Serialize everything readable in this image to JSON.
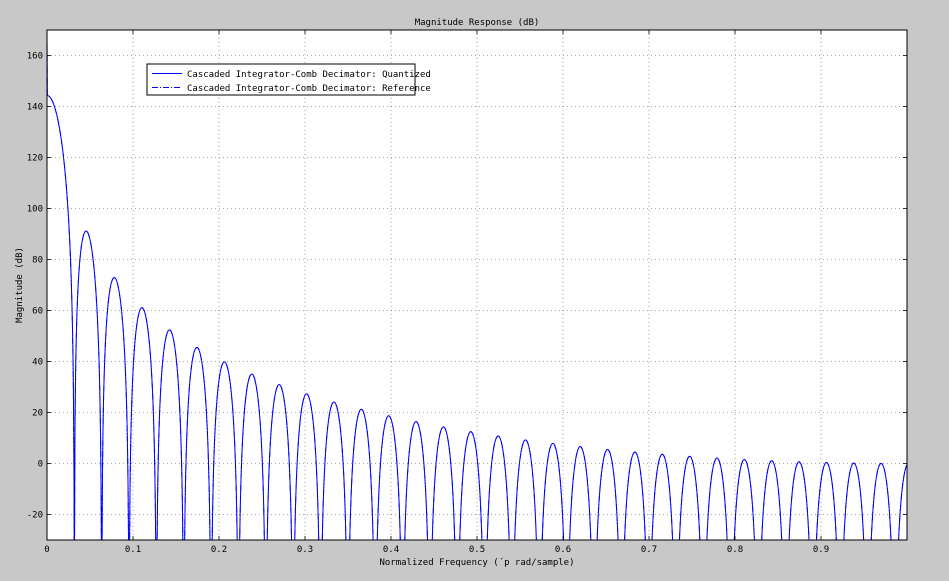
{
  "chart_data": {
    "type": "line",
    "title": "Magnitude Response (dB)",
    "xlabel": "Normalized Frequency (´p rad/sample)",
    "ylabel": "Magnitude (dB)",
    "xlim": [
      0,
      1
    ],
    "ylim": [
      -30,
      170
    ],
    "xticks": [
      0,
      0.1,
      0.2,
      0.3,
      0.4,
      0.5,
      0.6,
      0.7,
      0.8,
      0.9
    ],
    "xtick_labels": [
      "0",
      "0.1",
      "0.2",
      "0.3",
      "0.4",
      "0.5",
      "0.6",
      "0.7",
      "0.8",
      "0.9"
    ],
    "yticks": [
      -20,
      0,
      20,
      40,
      60,
      80,
      100,
      120,
      140,
      160
    ],
    "ytick_labels": [
      "-20",
      "0",
      "20",
      "40",
      "60",
      "80",
      "100",
      "120",
      "140",
      "160"
    ],
    "grid": true,
    "legend_position": "top-left",
    "series": [
      {
        "name": "Cascaded Integrator-Comb Decimator: Quantized",
        "style": "solid",
        "color": "#0000ff"
      },
      {
        "name": "Cascaded Integrator-Comb Decimator: Reference",
        "style": "dash-dot",
        "color": "#0000ff"
      }
    ],
    "response": {
      "peak_db": 168.5,
      "null_spacing": 0.0159,
      "samples": 3000
    }
  }
}
